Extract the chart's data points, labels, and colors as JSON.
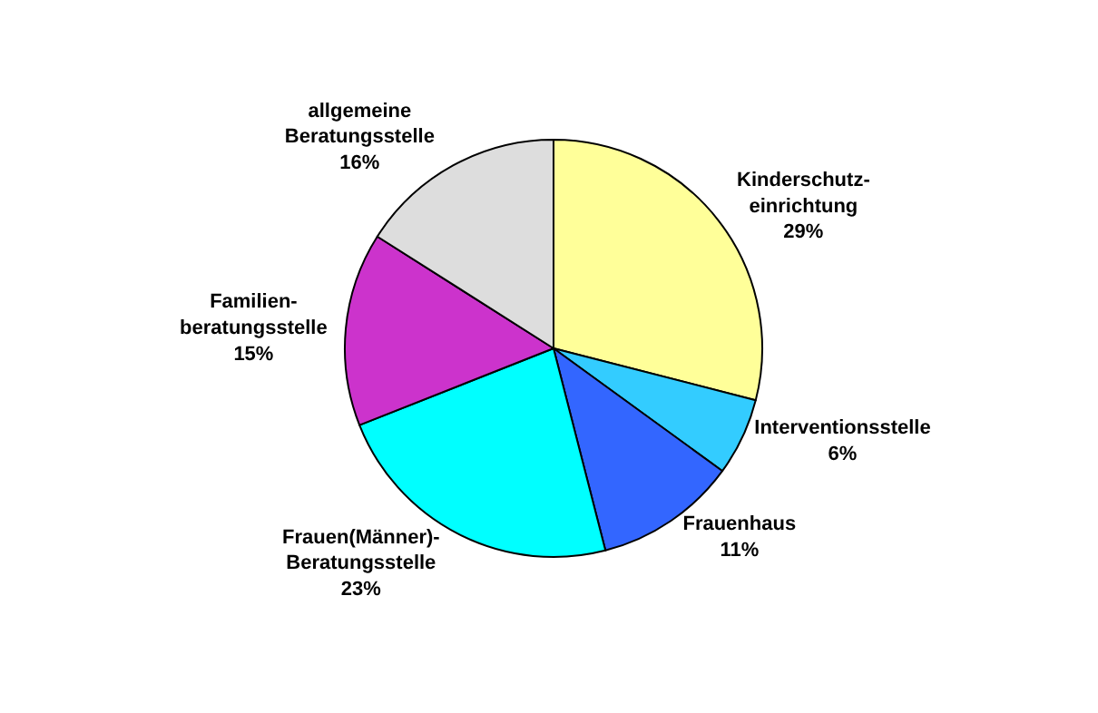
{
  "chart_data": {
    "type": "pie",
    "categories": [
      "Kinderschutz-\neinrichtung",
      "Interventionsstelle",
      "Frauenhaus",
      "Frauen(Männer)-\nBeratungsstelle",
      "Familien-\nberatungsstelle",
      "allgemeine\nBeratungsstelle"
    ],
    "values": [
      29,
      6,
      11,
      23,
      15,
      16
    ],
    "value_labels": [
      "29%",
      "6%",
      "11%",
      "23%",
      "15%",
      "16%"
    ],
    "colors": [
      "#ffff99",
      "#33ccff",
      "#3366ff",
      "#00ffff",
      "#cc33cc",
      "#dddddd"
    ],
    "legend": false
  }
}
